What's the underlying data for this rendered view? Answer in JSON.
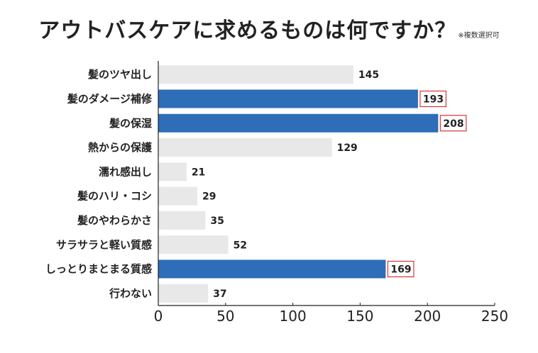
{
  "title": "アウトバスケアに求めるものは何ですか？",
  "note": "※複数選択可",
  "colors": {
    "highlight": "#2e6db8",
    "normal": "#e8e8e8",
    "box_border": "#d9343b",
    "axis": "#222222"
  },
  "chart_data": {
    "type": "bar",
    "orientation": "horizontal",
    "categories": [
      "髪のツヤ出し",
      "髪のダメージ補修",
      "髪の保湿",
      "熱からの保護",
      "濡れ感出し",
      "髪のハリ・コシ",
      "髪のやわらかさ",
      "サラサラと軽い質感",
      "しっとりまとまる質感",
      "行わない"
    ],
    "values": [
      145,
      193,
      208,
      129,
      21,
      29,
      35,
      52,
      169,
      37
    ],
    "highlighted": [
      false,
      true,
      true,
      false,
      false,
      false,
      false,
      false,
      true,
      false
    ],
    "xlim": [
      0,
      250
    ],
    "xticks": [
      0,
      50,
      100,
      150,
      200,
      250
    ],
    "grid": false,
    "legend": "none"
  }
}
